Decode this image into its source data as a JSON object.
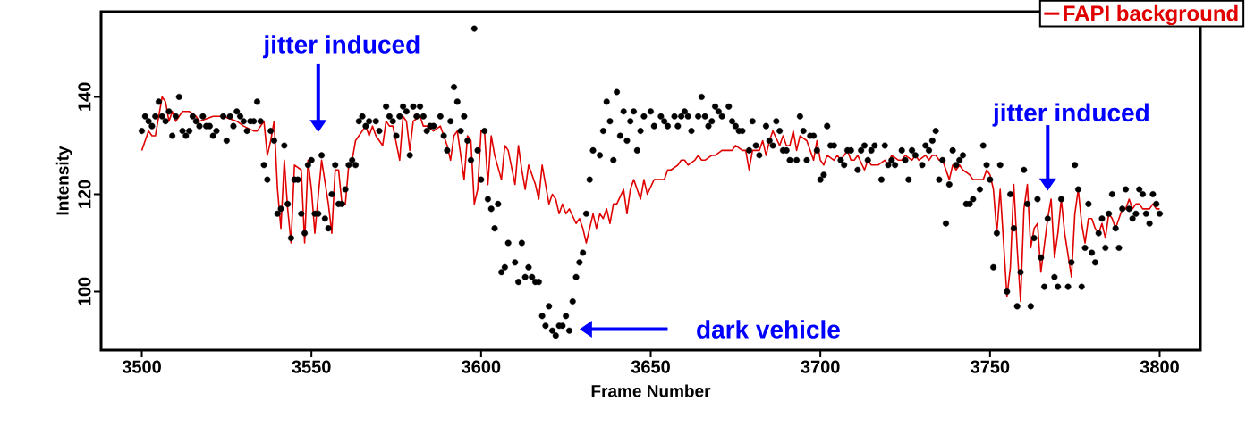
{
  "chart_data": {
    "type": "scatter",
    "xlabel": "Frame Number",
    "ylabel": "Intensity",
    "xlim": [
      3488,
      3812
    ],
    "ylim": [
      88,
      157.5
    ],
    "xticks": [
      3500,
      3550,
      3600,
      3650,
      3700,
      3750,
      3800
    ],
    "yticks": [
      100,
      120,
      140
    ],
    "grid": false,
    "legend": "top right",
    "series": [
      {
        "color": "#000000",
        "marker": "circle",
        "x": [
          3500,
          3501,
          3502,
          3503,
          3504,
          3505,
          3506,
          3507,
          3508,
          3509,
          3510,
          3511,
          3512,
          3513,
          3514,
          3515,
          3516,
          3517,
          3518,
          3519,
          3520,
          3521,
          3522,
          3524,
          3525,
          3526,
          3527,
          3528,
          3529,
          3530,
          3531,
          3532,
          3533,
          3534,
          3535,
          3536,
          3537,
          3538,
          3539,
          3540,
          3541,
          3542,
          3543,
          3544,
          3545,
          3546,
          3547,
          3548,
          3549,
          3550,
          3551,
          3552,
          3553,
          3554,
          3555,
          3556,
          3557,
          3558,
          3559,
          3560,
          3561,
          3562,
          3563,
          3564,
          3565,
          3566,
          3567,
          3569,
          3570,
          3572,
          3573,
          3574,
          3575,
          3576,
          3577,
          3578,
          3579,
          3580,
          3581,
          3582,
          3583,
          3584,
          3585,
          3586,
          3588,
          3589,
          3590,
          3591,
          3592,
          3593,
          3594,
          3595,
          3596,
          3597,
          3598,
          3599,
          3600,
          3601,
          3602,
          3603,
          3604,
          3605,
          3606,
          3607,
          3608,
          3610,
          3611,
          3612,
          3613,
          3614,
          3615,
          3616,
          3617,
          3618,
          3619,
          3620,
          3621,
          3622,
          3623,
          3624,
          3625,
          3626,
          3627,
          3628,
          3629,
          3630,
          3631,
          3632,
          3633,
          3635,
          3636,
          3637,
          3638,
          3639,
          3640,
          3641,
          3642,
          3643,
          3644,
          3645,
          3646,
          3647,
          3648,
          3650,
          3651,
          3653,
          3654,
          3655,
          3657,
          3658,
          3659,
          3660,
          3661,
          3662,
          3664,
          3665,
          3666,
          3667,
          3668,
          3669,
          3670,
          3671,
          3673,
          3674,
          3675,
          3676,
          3677,
          3679,
          3680,
          3681,
          3682,
          3684,
          3685,
          3686,
          3687,
          3688,
          3689,
          3690,
          3691,
          3693,
          3694,
          3695,
          3696,
          3697,
          3698,
          3699,
          3700,
          3701,
          3702,
          3703,
          3704,
          3706,
          3707,
          3708,
          3709,
          3711,
          3712,
          3713,
          3714,
          3715,
          3716,
          3718,
          3719,
          3720,
          3721,
          3722,
          3724,
          3725,
          3726,
          3727,
          3728,
          3730,
          3731,
          3732,
          3733,
          3734,
          3735,
          3736,
          3737,
          3738,
          3739,
          3740,
          3741,
          3742,
          3743,
          3744,
          3745,
          3747,
          3748,
          3749,
          3750,
          3751,
          3752,
          3753,
          3755,
          3756,
          3757,
          3758,
          3759,
          3760,
          3761,
          3762,
          3763,
          3764,
          3765,
          3766,
          3767,
          3769,
          3770,
          3771,
          3773,
          3774,
          3775,
          3776,
          3777,
          3778,
          3779,
          3780,
          3781,
          3782,
          3783,
          3784,
          3785,
          3786,
          3787,
          3788,
          3789,
          3790,
          3791,
          3792,
          3793,
          3794,
          3795,
          3796,
          3797,
          3798,
          3799,
          3800
        ],
        "values": [
          133,
          136,
          135,
          134,
          136,
          139,
          136,
          135,
          137,
          132,
          136,
          140,
          133,
          132,
          133,
          136,
          135,
          134,
          136,
          134,
          134,
          132,
          133,
          136,
          131,
          136,
          134,
          137,
          136,
          135,
          133,
          135,
          135,
          139,
          135,
          126,
          123,
          133,
          131,
          116,
          117,
          130,
          118,
          111,
          123,
          123,
          116,
          112,
          126,
          127,
          116,
          116,
          128,
          115,
          113,
          120,
          126,
          118,
          118,
          121,
          126,
          127,
          126,
          135,
          136,
          134,
          135,
          135,
          133,
          138,
          136,
          135,
          132,
          136,
          138,
          137,
          128,
          138,
          136,
          138,
          136,
          133,
          134,
          134,
          136,
          132,
          129,
          135,
          142,
          139,
          133,
          136,
          131,
          127,
          154,
          129,
          123,
          133,
          119,
          117,
          113,
          118,
          104,
          105,
          110,
          106,
          102,
          110,
          103,
          105,
          103,
          102,
          102,
          95,
          93,
          97,
          92,
          91,
          93,
          93,
          95,
          92,
          98,
          103,
          106,
          108,
          116,
          123,
          129,
          128,
          133,
          139,
          135,
          127,
          141,
          132,
          137,
          131,
          135,
          137,
          129,
          133,
          136,
          137,
          134,
          136,
          135,
          134,
          136,
          134,
          136,
          137,
          136,
          133,
          136,
          140,
          136,
          134,
          135,
          138,
          137,
          136,
          138,
          135,
          134,
          133,
          133,
          129,
          135,
          130,
          128,
          134,
          131,
          130,
          135,
          133,
          129,
          129,
          127,
          127,
          136,
          133,
          127,
          132,
          132,
          129,
          123,
          124,
          134,
          130,
          130,
          127,
          126,
          129,
          129,
          125,
          129,
          130,
          127,
          129,
          130,
          123,
          130,
          126,
          127,
          126,
          129,
          127,
          123,
          129,
          128,
          126,
          130,
          129,
          131,
          133,
          123,
          127,
          114,
          122,
          129,
          126,
          127,
          128,
          118,
          118,
          119,
          121,
          130,
          126,
          123,
          105,
          112,
          126,
          100,
          120,
          113,
          97,
          104,
          125,
          118,
          97,
          111,
          119,
          107,
          101,
          115,
          103,
          101,
          119,
          101,
          106,
          126,
          121,
          101,
          109,
          118,
          108,
          106,
          112,
          115,
          109,
          116,
          120,
          113,
          109,
          117,
          121,
          117,
          115,
          116,
          121,
          120,
          116,
          114,
          120,
          118,
          116
        ]
      },
      {
        "type": "line",
        "name": "FAPI background",
        "color": "#e00000",
        "marker": "none",
        "x": [
          3500,
          3502,
          3503,
          3504,
          3506,
          3507,
          3508,
          3509,
          3510,
          3511,
          3512,
          3514,
          3516,
          3517,
          3521,
          3524,
          3528,
          3530,
          3533,
          3534,
          3536,
          3537,
          3538,
          3539,
          3540,
          3541,
          3542,
          3543,
          3544,
          3545,
          3547,
          3548,
          3549,
          3550,
          3551,
          3553,
          3555,
          3556,
          3557,
          3558,
          3559,
          3560,
          3561,
          3562,
          3563,
          3565,
          3566,
          3567,
          3568,
          3569,
          3571,
          3572,
          3573,
          3574,
          3576,
          3577,
          3578,
          3579,
          3580,
          3582,
          3583,
          3584,
          3586,
          3588,
          3589,
          3590,
          3591,
          3592,
          3593,
          3595,
          3596,
          3597,
          3598,
          3599,
          3600,
          3601,
          3602,
          3603,
          3604,
          3606,
          3607,
          3608,
          3610,
          3611,
          3612,
          3613,
          3614,
          3616,
          3617,
          3618,
          3620,
          3621,
          3622,
          3623,
          3624,
          3625,
          3626,
          3628,
          3629,
          3630,
          3631,
          3633,
          3634,
          3635,
          3636,
          3637,
          3638,
          3639,
          3640,
          3642,
          3643,
          3644,
          3645,
          3647,
          3648,
          3649,
          3651,
          3652,
          3654,
          3655,
          3656,
          3658,
          3659,
          3660,
          3661,
          3663,
          3664,
          3665,
          3666,
          3668,
          3669,
          3671,
          3672,
          3674,
          3675,
          3677,
          3678,
          3679,
          3680,
          3682,
          3683,
          3684,
          3685,
          3686,
          3688,
          3689,
          3690,
          3691,
          3692,
          3693,
          3694,
          3696,
          3697,
          3698,
          3699,
          3700,
          3701,
          3702,
          3704,
          3705,
          3706,
          3708,
          3709,
          3710,
          3711,
          3713,
          3714,
          3715,
          3717,
          3719,
          3720,
          3721,
          3723,
          3724,
          3725,
          3727,
          3728,
          3729,
          3731,
          3732,
          3733,
          3734,
          3735,
          3736,
          3738,
          3739,
          3740,
          3741,
          3742,
          3744,
          3745,
          3746,
          3748,
          3749,
          3750,
          3751,
          3752,
          3753,
          3755,
          3756,
          3757,
          3758,
          3759,
          3760,
          3761,
          3762,
          3763,
          3764,
          3765,
          3767,
          3768,
          3769,
          3770,
          3771,
          3772,
          3774,
          3775,
          3776,
          3777,
          3778,
          3779,
          3780,
          3781,
          3782,
          3783,
          3784,
          3785,
          3786,
          3787,
          3789,
          3790,
          3791,
          3792,
          3793,
          3794,
          3795,
          3797,
          3798,
          3799,
          3800
        ],
        "values": [
          129,
          133,
          132,
          132,
          140,
          139,
          135,
          137,
          135,
          136,
          137,
          137,
          136,
          135,
          136,
          136,
          135,
          134,
          133,
          133,
          135,
          128,
          131,
          135,
          121,
          113,
          127,
          117,
          110,
          126,
          125,
          110,
          127,
          121,
          112,
          127,
          118,
          112,
          125,
          125,
          118,
          118,
          126,
          127,
          131,
          133,
          134,
          132,
          134,
          132,
          130,
          135,
          134,
          134,
          127,
          136,
          135,
          129,
          135,
          136,
          134,
          134,
          133,
          134,
          132,
          130,
          127,
          132,
          133,
          123,
          132,
          131,
          118,
          121,
          133,
          133,
          122,
          132,
          128,
          123,
          130,
          129,
          122,
          130,
          125,
          121,
          126,
          122,
          119,
          126,
          118,
          120,
          119,
          116,
          118,
          116,
          117,
          114,
          115,
          113,
          110,
          116,
          113,
          116,
          115,
          117,
          114,
          118,
          118,
          121,
          116,
          121,
          123,
          119,
          123,
          120,
          123,
          123,
          123,
          125,
          125,
          126,
          127,
          127,
          126,
          127,
          128,
          127,
          127,
          128,
          128,
          129,
          129,
          129,
          130,
          129,
          129,
          125,
          129,
          129,
          131,
          128,
          131,
          133,
          130,
          132,
          130,
          130,
          133,
          129,
          132,
          131,
          129,
          127,
          131,
          127,
          126,
          128,
          127,
          128,
          127,
          129,
          127,
          127,
          128,
          125,
          127,
          126,
          126,
          127,
          126,
          128,
          127,
          127,
          128,
          127,
          128,
          127,
          128,
          127,
          128,
          128,
          127,
          127,
          123,
          126,
          125,
          126,
          125,
          124,
          123,
          123,
          123,
          125,
          124,
          121,
          112,
          121,
          99,
          105,
          122,
          109,
          98,
          117,
          122,
          109,
          113,
          114,
          104,
          115,
          119,
          107,
          112,
          119,
          112,
          103,
          116,
          121,
          114,
          110,
          115,
          115,
          113,
          112,
          114,
          111,
          116,
          115,
          113,
          117,
          117,
          119,
          117,
          118,
          118,
          117,
          117,
          118,
          117,
          117
        ]
      }
    ],
    "annotations": [
      "jitter induced",
      "jitter induced",
      "dark vehicle"
    ]
  }
}
